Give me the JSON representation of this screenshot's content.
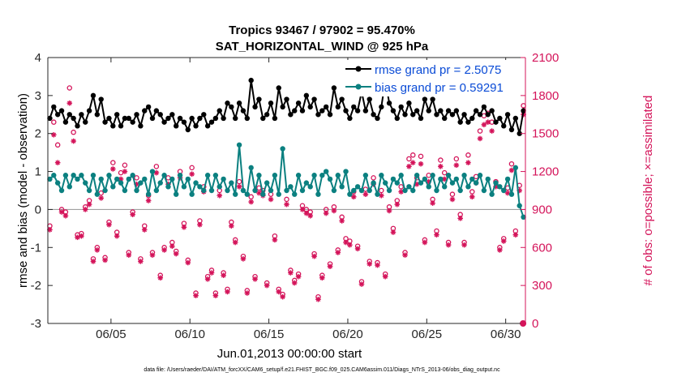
{
  "chart_data": {
    "type": "line",
    "title": "Tropics 93467 / 97902 = 95.470%",
    "subtitle": "SAT_HORIZONTAL_WIND @ 925 hPa",
    "xlabel": "Jun.01,2013 00:00:00 start",
    "ylabel": "rmse and bias (model - observation)",
    "ylabel_right": "# of obs: o=possible; ×=assimilated",
    "footnote": "data file: /Users/raeder/DAI/ATM_forcXX/CAM6_setup/f.e21.FHIST_BGC.f09_025.CAM6assim.011/Diags_NTrS_2013-06/obs_diag_output.nc",
    "xlim": [
      1.0,
      31.25
    ],
    "ylim": [
      -3,
      4
    ],
    "ylim_right": [
      0,
      2100
    ],
    "x_ticks": [
      5,
      10,
      15,
      20,
      25,
      30
    ],
    "x_tick_labels": [
      "06/05",
      "06/10",
      "06/15",
      "06/20",
      "06/25",
      "06/30"
    ],
    "y_ticks": [
      4,
      3,
      2,
      1,
      0,
      -1,
      -2,
      -3
    ],
    "y_tick_labels": [
      "4",
      "3",
      "2",
      "1",
      "0",
      "-1",
      "-2",
      "-3"
    ],
    "y_right_ticks": [
      2100,
      1800,
      1500,
      1200,
      900,
      600,
      300,
      0
    ],
    "y_right_tick_labels": [
      "2100",
      "1800",
      "1500",
      "1200",
      "900",
      "600",
      "300",
      "0"
    ],
    "legend": {
      "position": "top-right",
      "entries": [
        "rmse grand pr = 2.5075",
        "bias grand pr = 0.59291"
      ]
    },
    "colors": {
      "rmse": "#000000",
      "bias": "#0b8080",
      "obs": "#d4145a",
      "zero_line": "#a0a0a0",
      "legend_text": "#0a4bd6",
      "axis": "#262626"
    },
    "series": [
      {
        "name": "rmse",
        "axis": "left",
        "x": [
          1.125,
          1.375,
          1.625,
          1.875,
          2.125,
          2.375,
          2.625,
          2.875,
          3.125,
          3.375,
          3.625,
          3.875,
          4.125,
          4.375,
          4.625,
          4.875,
          5.125,
          5.375,
          5.625,
          5.875,
          6.125,
          6.375,
          6.625,
          6.875,
          7.125,
          7.375,
          7.625,
          7.875,
          8.125,
          8.375,
          8.625,
          8.875,
          9.125,
          9.375,
          9.625,
          9.875,
          10.125,
          10.375,
          10.625,
          10.875,
          11.125,
          11.375,
          11.625,
          11.875,
          12.125,
          12.375,
          12.625,
          12.875,
          13.125,
          13.375,
          13.625,
          13.875,
          14.125,
          14.375,
          14.625,
          14.875,
          15.125,
          15.375,
          15.625,
          15.875,
          16.125,
          16.375,
          16.625,
          16.875,
          17.125,
          17.375,
          17.625,
          17.875,
          18.125,
          18.375,
          18.625,
          18.875,
          19.125,
          19.375,
          19.625,
          19.875,
          20.125,
          20.375,
          20.625,
          20.875,
          21.125,
          21.375,
          21.625,
          21.875,
          22.125,
          22.375,
          22.625,
          22.875,
          23.125,
          23.375,
          23.625,
          23.875,
          24.125,
          24.375,
          24.625,
          24.875,
          25.125,
          25.375,
          25.625,
          25.875,
          26.125,
          26.375,
          26.625,
          26.875,
          27.125,
          27.375,
          27.625,
          27.875,
          28.125,
          28.375,
          28.625,
          28.875,
          29.125,
          29.375,
          29.625,
          29.875,
          30.125,
          30.375,
          30.625,
          30.875,
          31.125
        ],
        "values": [
          2.4,
          2.7,
          2.5,
          2.6,
          2.3,
          2.5,
          2.4,
          2.2,
          2.5,
          2.3,
          2.6,
          3.0,
          2.5,
          2.9,
          2.3,
          2.4,
          2.2,
          2.5,
          2.2,
          2.4,
          2.4,
          2.3,
          2.5,
          2.2,
          2.6,
          2.7,
          2.4,
          2.6,
          2.5,
          2.3,
          2.4,
          2.5,
          2.2,
          2.4,
          2.3,
          2.1,
          2.4,
          2.2,
          2.4,
          2.5,
          2.2,
          2.3,
          2.4,
          2.6,
          2.4,
          2.8,
          2.7,
          2.4,
          2.8,
          2.6,
          2.4,
          3.4,
          2.7,
          2.9,
          2.4,
          2.5,
          2.8,
          2.4,
          3.2,
          2.7,
          2.9,
          2.5,
          2.6,
          2.8,
          2.6,
          3.0,
          2.7,
          2.9,
          2.5,
          2.6,
          2.7,
          2.5,
          3.2,
          2.7,
          2.9,
          2.6,
          2.4,
          2.7,
          2.6,
          3.1,
          2.6,
          2.9,
          2.5,
          2.4,
          2.7,
          3.4,
          2.8,
          2.6,
          2.4,
          2.7,
          2.5,
          2.8,
          2.5,
          2.6,
          2.4,
          2.9,
          2.6,
          2.9,
          2.5,
          2.6,
          2.4,
          2.6,
          2.5,
          2.6,
          2.3,
          2.5,
          2.3,
          2.4,
          2.6,
          2.5,
          2.7,
          2.5,
          2.6,
          2.3,
          2.4,
          2.2,
          2.5,
          2.1,
          2.4,
          2.0,
          2.6
        ]
      },
      {
        "name": "bias",
        "axis": "left",
        "x": [
          1.125,
          1.375,
          1.625,
          1.875,
          2.125,
          2.375,
          2.625,
          2.875,
          3.125,
          3.375,
          3.625,
          3.875,
          4.125,
          4.375,
          4.625,
          4.875,
          5.125,
          5.375,
          5.625,
          5.875,
          6.125,
          6.375,
          6.625,
          6.875,
          7.125,
          7.375,
          7.625,
          7.875,
          8.125,
          8.375,
          8.625,
          8.875,
          9.125,
          9.375,
          9.625,
          9.875,
          10.125,
          10.375,
          10.625,
          10.875,
          11.125,
          11.375,
          11.625,
          11.875,
          12.125,
          12.375,
          12.625,
          12.875,
          13.125,
          13.375,
          13.625,
          13.875,
          14.125,
          14.375,
          14.625,
          14.875,
          15.125,
          15.375,
          15.625,
          15.875,
          16.125,
          16.375,
          16.625,
          16.875,
          17.125,
          17.375,
          17.625,
          17.875,
          18.125,
          18.375,
          18.625,
          18.875,
          19.125,
          19.375,
          19.625,
          19.875,
          20.125,
          20.375,
          20.625,
          20.875,
          21.125,
          21.375,
          21.625,
          21.875,
          22.125,
          22.375,
          22.625,
          22.875,
          23.125,
          23.375,
          23.625,
          23.875,
          24.125,
          24.375,
          24.625,
          24.875,
          25.125,
          25.375,
          25.625,
          25.875,
          26.125,
          26.375,
          26.625,
          26.875,
          27.125,
          27.375,
          27.625,
          27.875,
          28.125,
          28.375,
          28.625,
          28.875,
          29.125,
          29.375,
          29.625,
          29.875,
          30.125,
          30.375,
          30.625,
          30.875,
          31.125
        ],
        "values": [
          0.8,
          0.9,
          0.7,
          0.5,
          0.9,
          0.6,
          0.9,
          0.8,
          0.9,
          0.7,
          0.5,
          0.9,
          0.4,
          0.8,
          0.5,
          0.9,
          0.6,
          0.8,
          0.7,
          0.5,
          0.8,
          0.9,
          0.5,
          0.7,
          0.8,
          0.4,
          1.0,
          0.5,
          0.7,
          0.9,
          0.6,
          0.8,
          0.4,
          0.9,
          0.6,
          0.8,
          0.4,
          0.7,
          0.6,
          0.5,
          0.9,
          0.5,
          0.9,
          0.6,
          0.8,
          0.5,
          0.7,
          0.4,
          1.7,
          0.5,
          0.4,
          1.1,
          0.5,
          0.9,
          0.4,
          0.7,
          0.5,
          0.9,
          0.4,
          1.6,
          0.5,
          0.6,
          0.4,
          0.9,
          0.5,
          0.7,
          0.6,
          0.9,
          0.4,
          0.9,
          1.0,
          0.8,
          0.5,
          0.9,
          0.6,
          1.0,
          0.4,
          0.5,
          0.6,
          0.5,
          0.9,
          0.5,
          0.7,
          0.4,
          0.9,
          0.7,
          0.5,
          0.8,
          0.7,
          0.9,
          0.5,
          0.6,
          0.5,
          0.9,
          0.7,
          0.8,
          0.6,
          0.9,
          0.5,
          0.8,
          0.6,
          0.9,
          0.7,
          0.8,
          0.5,
          0.9,
          0.6,
          0.8,
          0.7,
          0.9,
          0.5,
          0.8,
          0.4,
          0.7,
          0.6,
          0.5,
          0.8,
          0.4,
          1.1,
          0.1,
          -0.2
        ]
      },
      {
        "name": "obs possible",
        "axis": "right",
        "marker": "o",
        "x": [
          1.125,
          1.375,
          1.625,
          1.875,
          2.125,
          2.375,
          2.625,
          2.875,
          3.125,
          3.375,
          3.625,
          3.875,
          4.125,
          4.375,
          4.625,
          4.875,
          5.125,
          5.375,
          5.625,
          5.875,
          6.125,
          6.375,
          6.625,
          6.875,
          7.125,
          7.375,
          7.625,
          7.875,
          8.125,
          8.375,
          8.625,
          8.875,
          9.125,
          9.375,
          9.625,
          9.875,
          10.125,
          10.375,
          10.625,
          10.875,
          11.125,
          11.375,
          11.625,
          11.875,
          12.125,
          12.375,
          12.625,
          12.875,
          13.125,
          13.375,
          13.625,
          13.875,
          14.125,
          14.375,
          14.625,
          14.875,
          15.125,
          15.375,
          15.625,
          15.875,
          16.125,
          16.375,
          16.625,
          16.875,
          17.125,
          17.375,
          17.625,
          17.875,
          18.125,
          18.375,
          18.625,
          18.875,
          19.125,
          19.375,
          19.625,
          19.875,
          20.125,
          20.375,
          20.625,
          20.875,
          21.125,
          21.375,
          21.625,
          21.875,
          22.125,
          22.375,
          22.625,
          22.875,
          23.125,
          23.375,
          23.625,
          23.875,
          24.125,
          24.375,
          24.625,
          24.875,
          25.125,
          25.375,
          25.625,
          25.875,
          26.125,
          26.375,
          26.625,
          26.875,
          27.125,
          27.375,
          27.625,
          27.875,
          28.125,
          28.375,
          28.625,
          28.875,
          29.125,
          29.375,
          29.625,
          29.875,
          30.125,
          30.375,
          30.625,
          30.875,
          31.125
        ],
        "values": [
          770,
          1590,
          1410,
          900,
          880,
          1860,
          1510,
          700,
          710,
          920,
          970,
          510,
          600,
          1030,
          520,
          800,
          1270,
          720,
          1190,
          1250,
          560,
          880,
          1150,
          510,
          770,
          1010,
          560,
          1240,
          380,
          600,
          1150,
          640,
          570,
          1200,
          790,
          500,
          1230,
          240,
          810,
          1080,
          370,
          420,
          240,
          1050,
          400,
          270,
          800,
          660,
          1120,
          530,
          260,
          1000,
          370,
          1070,
          1050,
          320,
          1020,
          690,
          270,
          230,
          980,
          420,
          340,
          390,
          930,
          900,
          880,
          550,
          210,
          380,
          900,
          470,
          920,
          580,
          840,
          670,
          650,
          1040,
          610,
          330,
          1060,
          490,
          1150,
          480,
          1050,
          390,
          920,
          750,
          970,
          1080,
          560,
          1300,
          1330,
          1150,
          1320,
          660,
          1170,
          980,
          730,
          1290,
          1190,
          640,
          1020,
          1300,
          860,
          640,
          1330,
          1040,
          1160,
          1520,
          1640,
          1660,
          1590,
          1120,
          600,
          670,
          1070,
          1260,
          730,
          1090,
          1720
        ]
      },
      {
        "name": "obs assimilated",
        "axis": "right",
        "marker": "x",
        "x": [
          1.125,
          1.375,
          1.625,
          1.875,
          2.125,
          2.375,
          2.625,
          2.875,
          3.125,
          3.375,
          3.625,
          3.875,
          4.125,
          4.375,
          4.625,
          4.875,
          5.125,
          5.375,
          5.625,
          5.875,
          6.125,
          6.375,
          6.625,
          6.875,
          7.125,
          7.375,
          7.625,
          7.875,
          8.125,
          8.375,
          8.625,
          8.875,
          9.125,
          9.375,
          9.625,
          9.875,
          10.125,
          10.375,
          10.625,
          10.875,
          11.125,
          11.375,
          11.625,
          11.875,
          12.125,
          12.375,
          12.625,
          12.875,
          13.125,
          13.375,
          13.625,
          13.875,
          14.125,
          14.375,
          14.625,
          14.875,
          15.125,
          15.375,
          15.625,
          15.875,
          16.125,
          16.375,
          16.625,
          16.875,
          17.125,
          17.375,
          17.625,
          17.875,
          18.125,
          18.375,
          18.625,
          18.875,
          19.125,
          19.375,
          19.625,
          19.875,
          20.125,
          20.375,
          20.625,
          20.875,
          21.125,
          21.375,
          21.625,
          21.875,
          22.125,
          22.375,
          22.625,
          22.875,
          23.125,
          23.375,
          23.625,
          23.875,
          24.125,
          24.375,
          24.625,
          24.875,
          25.125,
          25.375,
          25.625,
          25.875,
          26.125,
          26.375,
          26.625,
          26.875,
          27.125,
          27.375,
          27.625,
          27.875,
          28.125,
          28.375,
          28.625,
          28.875,
          29.125,
          29.375,
          29.625,
          29.875,
          30.125,
          30.375,
          30.625,
          30.875,
          31.125
        ],
        "values": [
          740,
          1490,
          1270,
          880,
          850,
          1740,
          1440,
          680,
          690,
          900,
          940,
          490,
          580,
          990,
          500,
          780,
          1220,
          690,
          1140,
          1200,
          540,
          860,
          1100,
          490,
          740,
          970,
          540,
          1190,
          360,
          580,
          1100,
          610,
          550,
          1150,
          760,
          480,
          1180,
          220,
          780,
          1040,
          350,
          400,
          220,
          1010,
          380,
          250,
          770,
          640,
          1080,
          510,
          240,
          960,
          350,
          1030,
          1010,
          300,
          980,
          660,
          250,
          210,
          940,
          400,
          320,
          370,
          900,
          870,
          850,
          530,
          190,
          360,
          870,
          450,
          890,
          560,
          810,
          640,
          620,
          1000,
          590,
          310,
          1020,
          470,
          1100,
          460,
          1010,
          370,
          890,
          720,
          940,
          1040,
          540,
          1240,
          1270,
          1100,
          1260,
          640,
          1120,
          950,
          700,
          1240,
          1140,
          620,
          980,
          1250,
          830,
          620,
          1270,
          1000,
          1110,
          1460,
          1570,
          1590,
          1520,
          1080,
          580,
          650,
          1030,
          1210,
          700,
          1050,
          1650
        ]
      }
    ],
    "extra_points": [
      {
        "series": "obs assimilated",
        "x": 31.1,
        "value": 0
      }
    ]
  }
}
